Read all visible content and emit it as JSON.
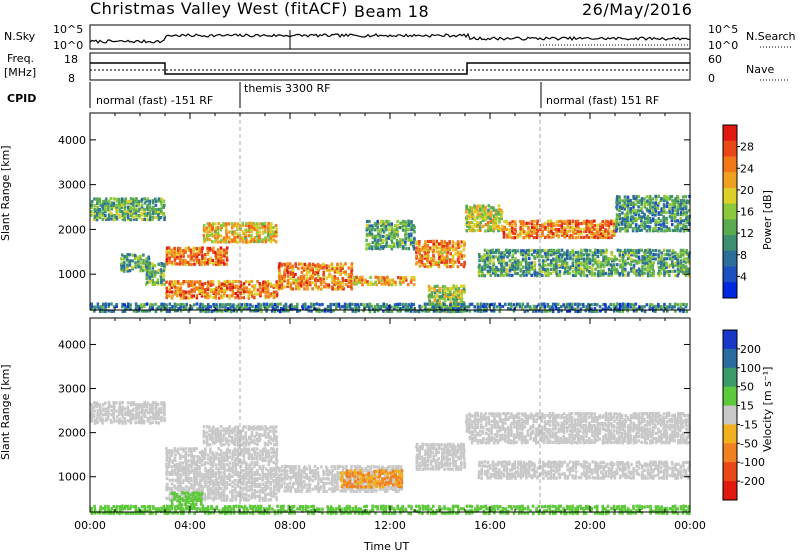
{
  "header": {
    "station": "Christmas Valley West (fitACF)",
    "beam": "Beam 18",
    "date": "26/May/2016"
  },
  "panels": {
    "nsky_label": "N.Sky",
    "nsky_ticks": [
      "10^5",
      "10^0"
    ],
    "nsearch_label": "N.Search",
    "freq_label": "Freq.",
    "freq_unit": "[MHz]",
    "freq_ticks": [
      "18",
      "8"
    ],
    "nave_ticks": [
      "60",
      "0"
    ],
    "nave_label": "Nave",
    "cpid_label": "CPID",
    "cpid_segments": [
      "normal (fast) -151 RF",
      "themis 3300 RF",
      "normal (fast) 151 RF"
    ]
  },
  "colors": {
    "gate_gray": "#c8c8c8",
    "noise_green": "#5cc83a"
  },
  "chart_data": [
    {
      "type": "heatmap",
      "panel": "power",
      "ylabel": "Slant Range [km]",
      "yticks": [
        "1000",
        "2000",
        "3000",
        "4000"
      ],
      "ylim": [
        200,
        4600
      ],
      "xlim": [
        0,
        24
      ],
      "colorbar": {
        "label": "Power [dB]",
        "ticks": [
          "4",
          "8",
          "12",
          "16",
          "20",
          "24",
          "28"
        ],
        "colors": [
          "#0028e0",
          "#1c50c0",
          "#2c6e9a",
          "#3c9070",
          "#5aaa50",
          "#8cc83c",
          "#dcd028",
          "#f0a020",
          "#f07818",
          "#e84818",
          "#e01a10"
        ]
      },
      "series": [
        {
          "x": [
            0,
            3
          ],
          "y": [
            2250,
            2750
          ],
          "v": 14
        },
        {
          "x": [
            1.2,
            2.4
          ],
          "y": [
            1100,
            1500
          ],
          "v": 13
        },
        {
          "x": [
            2.2,
            3.0
          ],
          "y": [
            800,
            1300
          ],
          "v": 15
        },
        {
          "x": [
            3,
            5.5
          ],
          "y": [
            1250,
            1650
          ],
          "v": 25
        },
        {
          "x": [
            3,
            7.5
          ],
          "y": [
            500,
            900
          ],
          "v": 25
        },
        {
          "x": [
            4.5,
            7.5
          ],
          "y": [
            1750,
            2200
          ],
          "v": 21
        },
        {
          "x": [
            7.5,
            10.5
          ],
          "y": [
            700,
            1300
          ],
          "v": 24
        },
        {
          "x": [
            10.5,
            13.0
          ],
          "y": [
            800,
            1000
          ],
          "v": 22
        },
        {
          "x": [
            11,
            13
          ],
          "y": [
            1600,
            2250
          ],
          "v": 13
        },
        {
          "x": [
            13,
            15
          ],
          "y": [
            1200,
            1800
          ],
          "v": 24
        },
        {
          "x": [
            13.5,
            15
          ],
          "y": [
            200,
            800
          ],
          "v": 17
        },
        {
          "x": [
            15,
            16.5
          ],
          "y": [
            2000,
            2600
          ],
          "v": 18
        },
        {
          "x": [
            16.5,
            21
          ],
          "y": [
            1850,
            2250
          ],
          "v": 25
        },
        {
          "x": [
            15.5,
            24
          ],
          "y": [
            1000,
            1600
          ],
          "v": 13
        },
        {
          "x": [
            21,
            24
          ],
          "y": [
            2000,
            2800
          ],
          "v": 12
        },
        {
          "x": [
            0,
            24
          ],
          "y": [
            200,
            400
          ],
          "v": 10
        }
      ]
    },
    {
      "type": "heatmap",
      "panel": "velocity",
      "ylabel": "Slant Range [km]",
      "yticks": [
        "1000",
        "2000",
        "3000",
        "4000"
      ],
      "ylim": [
        200,
        4600
      ],
      "xlim": [
        0,
        24
      ],
      "xlabel": "Time UT",
      "xticks": [
        "00:00",
        "04:00",
        "08:00",
        "12:00",
        "16:00",
        "20:00",
        "00:00"
      ],
      "colorbar": {
        "label": "Velocity [m s⁻¹]",
        "ticks": [
          "200",
          "100",
          "50",
          "15",
          "-15",
          "-50",
          "-100",
          "-200"
        ],
        "colors": [
          "#1838c8",
          "#2a6ca0",
          "#3a9a6a",
          "#5cc83a",
          "#c8c8c8",
          "#f0b020",
          "#f08020",
          "#e84818",
          "#e01a10"
        ]
      },
      "series": [
        {
          "x": [
            0,
            3
          ],
          "y": [
            2250,
            2750
          ],
          "v": 0
        },
        {
          "x": [
            3,
            7.5
          ],
          "y": [
            500,
            1700
          ],
          "v": 0
        },
        {
          "x": [
            3.2,
            4.5
          ],
          "y": [
            400,
            700
          ],
          "v": 30
        },
        {
          "x": [
            4.5,
            7.5
          ],
          "y": [
            1750,
            2200
          ],
          "v": 0
        },
        {
          "x": [
            7.5,
            12.5
          ],
          "y": [
            700,
            1300
          ],
          "v": 0
        },
        {
          "x": [
            10,
            12.5
          ],
          "y": [
            800,
            1200
          ],
          "v": -50
        },
        {
          "x": [
            13,
            15
          ],
          "y": [
            1200,
            1800
          ],
          "v": 0
        },
        {
          "x": [
            15,
            24
          ],
          "y": [
            1800,
            2500
          ],
          "v": 0
        },
        {
          "x": [
            15.5,
            24
          ],
          "y": [
            1000,
            1400
          ],
          "v": 0
        },
        {
          "x": [
            0,
            24
          ],
          "y": [
            200,
            400
          ],
          "v": 30
        }
      ]
    }
  ]
}
